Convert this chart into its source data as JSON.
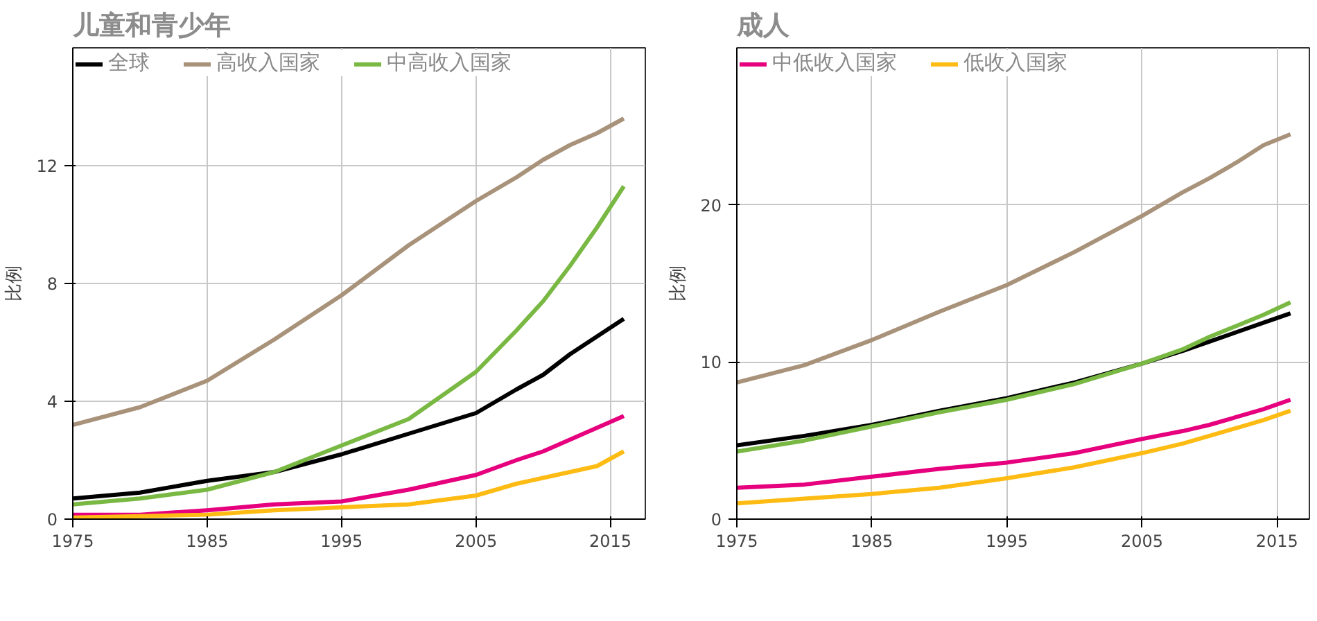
{
  "chart_data": [
    {
      "type": "line",
      "title": "儿童和青少年",
      "ylabel": "比例",
      "xlim": [
        1975,
        2017.6
      ],
      "ylim": [
        0,
        16
      ],
      "xticks": [
        1975,
        1985,
        1995,
        2005,
        2015
      ],
      "yticks": [
        0,
        4,
        8,
        12
      ],
      "grid": true,
      "legend": "top left",
      "x": [
        1975,
        1980,
        1985,
        1990,
        1995,
        2000,
        2005,
        2008,
        2010,
        2012,
        2014,
        2016
      ],
      "series": [
        {
          "name": "全球",
          "color": "#000000",
          "values": [
            0.7,
            0.9,
            1.3,
            1.6,
            2.2,
            2.9,
            3.6,
            4.4,
            4.9,
            5.6,
            6.2,
            6.8
          ]
        },
        {
          "name": "高收入国家",
          "color": "#a8927a",
          "values": [
            3.2,
            3.8,
            4.7,
            6.1,
            7.6,
            9.3,
            10.8,
            11.6,
            12.2,
            12.7,
            13.1,
            13.6
          ]
        },
        {
          "name": "中高收入国家",
          "color": "#79b943",
          "values": [
            0.5,
            0.7,
            1.0,
            1.6,
            2.5,
            3.4,
            5.0,
            6.4,
            7.4,
            8.6,
            9.9,
            11.3
          ]
        },
        {
          "color": "#e6007e",
          "values": [
            0.15,
            0.15,
            0.3,
            0.5,
            0.6,
            1.0,
            1.5,
            2.0,
            2.3,
            2.7,
            3.1,
            3.5
          ]
        },
        {
          "color": "#fdbb13",
          "values": [
            0.05,
            0.1,
            0.15,
            0.3,
            0.4,
            0.5,
            0.8,
            1.2,
            1.4,
            1.6,
            1.8,
            2.3
          ]
        }
      ]
    },
    {
      "type": "line",
      "title": "成人",
      "ylabel": "比例",
      "xlim": [
        1975,
        2017.4
      ],
      "ylim": [
        0,
        30
      ],
      "xticks": [
        1975,
        1985,
        1995,
        2005,
        2015
      ],
      "yticks": [
        0,
        10,
        20
      ],
      "grid": true,
      "legend": "top left",
      "x": [
        1975,
        1980,
        1985,
        1990,
        1995,
        2000,
        2005,
        2008,
        2010,
        2012,
        2014,
        2016
      ],
      "series": [
        {
          "color": "#000000",
          "values": [
            4.7,
            5.3,
            6.0,
            6.9,
            7.7,
            8.7,
            9.9,
            10.7,
            11.3,
            11.9,
            12.5,
            13.1
          ]
        },
        {
          "color": "#a8927a",
          "values": [
            8.7,
            9.8,
            11.4,
            13.2,
            14.9,
            17.0,
            19.3,
            20.8,
            21.7,
            22.7,
            23.8,
            24.5
          ]
        },
        {
          "color": "#79b943",
          "values": [
            4.3,
            5.0,
            5.9,
            6.8,
            7.6,
            8.6,
            9.9,
            10.8,
            11.6,
            12.3,
            13.0,
            13.8
          ]
        },
        {
          "name": "中低收入国家",
          "color": "#e6007e",
          "values": [
            2.0,
            2.2,
            2.7,
            3.2,
            3.6,
            4.2,
            5.1,
            5.6,
            6.0,
            6.5,
            7.0,
            7.6
          ]
        },
        {
          "name": "低收入国家",
          "color": "#fdbb13",
          "values": [
            1.0,
            1.3,
            1.6,
            2.0,
            2.6,
            3.3,
            4.2,
            4.8,
            5.3,
            5.8,
            6.3,
            6.9
          ]
        }
      ]
    }
  ]
}
